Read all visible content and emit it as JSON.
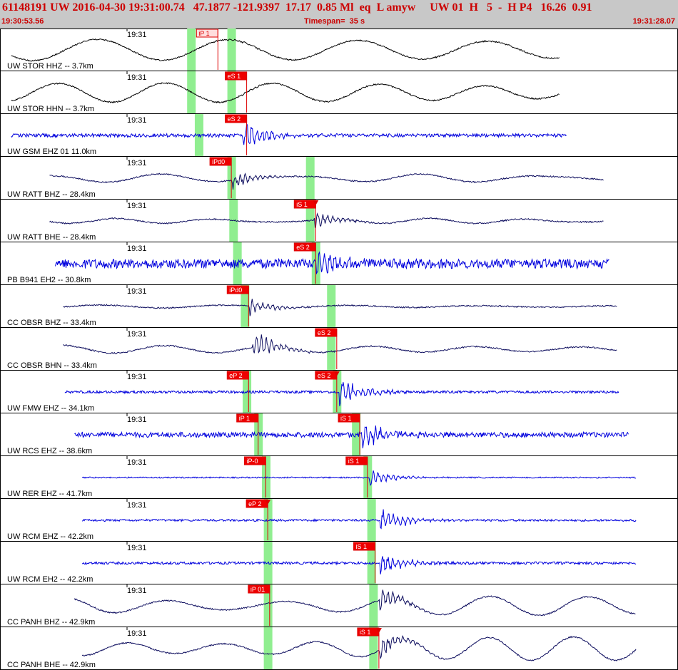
{
  "header": {
    "title": "61148191 UW 2016-04-30 19:31:00.74   47.1877 -121.9397  17.17  0.85 Ml  eq  L amyw     UW 01  H   5  -  H P4   16.26  0.91",
    "start_time": "19:30:53.56",
    "timespan": "Timespan=  35 s",
    "end_time": "19:31:28.07"
  },
  "colors": {
    "pick_box": "#ee0000",
    "pick_line": "#dd0000",
    "highlight": "#90ee90",
    "grid": "#000000",
    "trace_blue": "#0000dd",
    "trace_navy": "#101060",
    "trace_black": "#000000",
    "header_bg": "#c8c8c8",
    "header_text": "#cc0000"
  },
  "chart_data": {
    "type": "line",
    "title": "61148191 UW 2016-04-30 19:31:00.74   47.1877 -121.9397  17.17  0.85 Ml  eq  L amyw     UW 01  H   5  -  H P4   16.26  0.91",
    "x_unit": "s",
    "x_range": [
      0,
      35
    ],
    "time_tick_label": "19:31",
    "traces": [
      {
        "label": "UW STOR HHZ -- 3.7km",
        "tick": "19:31",
        "color": "black",
        "style": "longperiod",
        "amp": 0.5,
        "data_start": 0.4,
        "data_end": 29.0,
        "arrival": 11.6,
        "burst_amp": 0.05,
        "highlights": [
          9.8,
          11.9
        ],
        "picks": [
          {
            "text": "iP 1",
            "t": 10.4,
            "hollow": true
          }
        ]
      },
      {
        "label": "UW STOR HHN -- 3.7km",
        "tick": "19:31",
        "color": "black",
        "style": "longperiod",
        "amp": 0.45,
        "data_start": 0.4,
        "data_end": 29.0,
        "arrival": 12.4,
        "burst_amp": 0.05,
        "highlights": [
          9.8,
          11.9
        ],
        "picks": [
          {
            "text": "eS 1",
            "t": 11.9
          }
        ]
      },
      {
        "label": "UW GSM EHZ 01 11.0km",
        "tick": "19:31",
        "color": "blue",
        "style": "noise",
        "amp": 0.08,
        "data_start": 0.4,
        "data_end": 29.4,
        "arrival": 12.5,
        "burst_amp": 0.9,
        "highlights": [
          10.2
        ],
        "picks": [
          {
            "text": "eS 2",
            "t": 11.9
          }
        ]
      },
      {
        "label": "UW RATT BHZ -- 28.4km",
        "tick": "19:31",
        "color": "navy",
        "style": "longperiod",
        "amp": 0.2,
        "data_start": 2.4,
        "data_end": 31.3,
        "arrival": 11.9,
        "burst_amp": 0.45,
        "highlights": [
          11.9,
          16.0
        ],
        "picks": [
          {
            "text": "iPd0",
            "t": 11.1
          }
        ]
      },
      {
        "label": "UW RATT BHE -- 28.4km",
        "tick": "19:31",
        "color": "navy",
        "style": "longperiod",
        "amp": 0.12,
        "data_start": 2.4,
        "data_end": 31.3,
        "arrival": 16.2,
        "burst_amp": 0.5,
        "highlights": [
          12.0,
          16.0
        ],
        "picks": [
          {
            "text": "iS 1",
            "t": 15.5,
            "tri": true
          }
        ]
      },
      {
        "label": "PB B941 EH2 -- 30.8km",
        "tick": "19:31",
        "color": "blue",
        "style": "noise",
        "amp": 0.22,
        "data_start": 2.7,
        "data_end": 31.6,
        "arrival": 16.3,
        "burst_amp": 0.9,
        "highlights": [
          12.2,
          16.3
        ],
        "picks": [
          {
            "text": "eS 2",
            "t": 15.5
          }
        ]
      },
      {
        "label": "CC OBSR BHZ -- 33.4km",
        "tick": "19:31",
        "color": "navy",
        "style": "longperiod",
        "amp": 0.07,
        "data_start": 3.1,
        "data_end": 32.0,
        "arrival": 12.8,
        "burst_amp": 0.5,
        "highlights": [
          12.6,
          17.1
        ],
        "picks": [
          {
            "text": "iPd0",
            "t": 12.0
          }
        ]
      },
      {
        "label": "CC OBSR BHN -- 33.4km",
        "tick": "19:31",
        "color": "navy",
        "style": "longperiod",
        "amp": 0.2,
        "data_start": 3.1,
        "data_end": 32.0,
        "arrival": 13.0,
        "burst_amp": 0.9,
        "highlights": [
          17.1
        ],
        "picks": [
          {
            "text": "eS 2",
            "t": 16.6
          }
        ]
      },
      {
        "label": "UW FMW EHZ -- 34.1km",
        "tick": "19:31",
        "color": "blue",
        "style": "noise",
        "amp": 0.06,
        "data_start": 3.2,
        "data_end": 32.1,
        "arrival": 17.5,
        "burst_amp": 0.9,
        "highlights": [
          12.7,
          17.4
        ],
        "picks": [
          {
            "text": "eP 2",
            "t": 12.0
          },
          {
            "text": "eS 2",
            "t": 16.6,
            "tri": true
          }
        ]
      },
      {
        "label": "UW RCS EHZ -- 38.6km",
        "tick": "19:31",
        "color": "blue",
        "style": "noise",
        "amp": 0.12,
        "data_start": 3.7,
        "data_end": 32.6,
        "arrival": 18.7,
        "burst_amp": 0.8,
        "highlights": [
          13.3,
          18.4
        ],
        "picks": [
          {
            "text": "iP 1",
            "t": 12.5
          },
          {
            "text": "iS 1",
            "t": 17.8
          }
        ]
      },
      {
        "label": "UW RER EHZ -- 41.7km",
        "tick": "19:31",
        "color": "blue",
        "style": "quiet",
        "amp": 0.03,
        "data_start": 4.1,
        "data_end": 33.0,
        "arrival": 19.1,
        "burst_amp": 0.5,
        "highlights": [
          13.7,
          19.0
        ],
        "picks": [
          {
            "text": "iP-0",
            "t": 12.9
          },
          {
            "text": "iS 1",
            "t": 18.2
          }
        ]
      },
      {
        "label": "UW RCM EHZ -- 42.2km",
        "tick": "19:31",
        "color": "blue",
        "style": "quiet",
        "amp": 0.05,
        "data_start": 4.1,
        "data_end": 33.0,
        "arrival": 19.6,
        "burst_amp": 0.8,
        "highlights": [
          13.8,
          19.2
        ],
        "picks": [
          {
            "text": "eP 2",
            "t": 13.0,
            "tri": true
          }
        ]
      },
      {
        "label": "UW RCM EH2 -- 42.2km",
        "tick": "19:31",
        "color": "blue",
        "style": "quiet",
        "amp": 0.06,
        "data_start": 4.1,
        "data_end": 33.0,
        "arrival": 19.6,
        "burst_amp": 0.8,
        "highlights": [
          13.8,
          19.2
        ],
        "picks": [
          {
            "text": "iS 1",
            "t": 18.6
          }
        ]
      },
      {
        "label": "CC PANH BHZ -- 42.9km",
        "tick": "19:31",
        "color": "navy",
        "style": "longperiod",
        "amp": 0.45,
        "data_start": 3.7,
        "data_end": 33.0,
        "arrival": 19.6,
        "burst_amp": 0.6,
        "highlights": [
          13.8,
          19.3
        ],
        "picks": [
          {
            "text": "iP 01",
            "t": 13.1
          }
        ]
      },
      {
        "label": "CC PANH BHE -- 42.9km",
        "tick": "19:31",
        "color": "navy",
        "style": "longperiod",
        "amp": 0.55,
        "data_start": 4.1,
        "data_end": 33.0,
        "arrival": 19.6,
        "burst_amp": 0.6,
        "highlights": [
          13.8,
          19.3
        ],
        "picks": [
          {
            "text": "iS 1",
            "t": 18.8,
            "tri": true
          }
        ]
      }
    ]
  }
}
